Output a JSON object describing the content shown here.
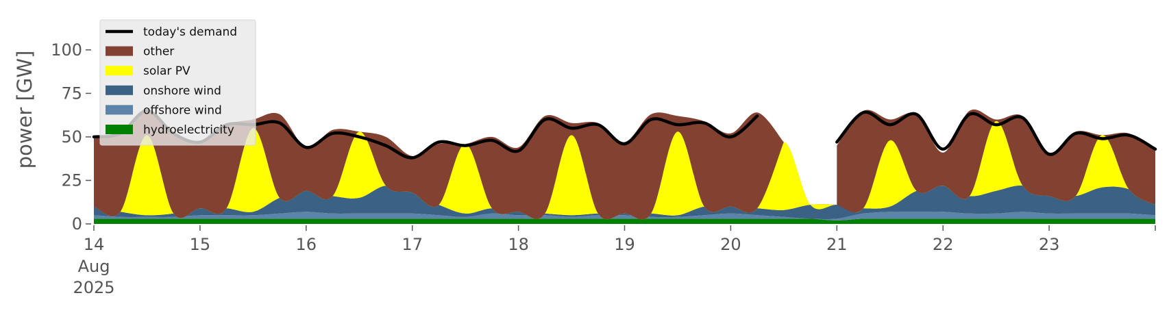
{
  "chart_data": {
    "type": "area",
    "title": "",
    "xlabel": "",
    "ylabel": "power [GW]",
    "ylim": [
      0,
      120
    ],
    "xlim": [
      "2025-08-14 00:00",
      "2025-08-24 00:00"
    ],
    "yticks": [
      0,
      25,
      50,
      75,
      100
    ],
    "xticks": [
      {
        "label": "14",
        "sub": [
          "Aug",
          "2025"
        ]
      },
      {
        "label": "15"
      },
      {
        "label": "16"
      },
      {
        "label": "17"
      },
      {
        "label": "18"
      },
      {
        "label": "19"
      },
      {
        "label": "20"
      },
      {
        "label": "21"
      },
      {
        "label": "22"
      },
      {
        "label": "23"
      }
    ],
    "x": [
      "2025-08-14 00:00",
      "2025-08-14 06:00",
      "2025-08-14 12:00",
      "2025-08-14 18:00",
      "2025-08-15 00:00",
      "2025-08-15 06:00",
      "2025-08-15 12:00",
      "2025-08-15 18:00",
      "2025-08-16 00:00",
      "2025-08-16 06:00",
      "2025-08-16 12:00",
      "2025-08-16 18:00",
      "2025-08-17 00:00",
      "2025-08-17 06:00",
      "2025-08-17 12:00",
      "2025-08-17 18:00",
      "2025-08-18 00:00",
      "2025-08-18 06:00",
      "2025-08-18 12:00",
      "2025-08-18 18:00",
      "2025-08-19 00:00",
      "2025-08-19 06:00",
      "2025-08-19 12:00",
      "2025-08-19 18:00",
      "2025-08-20 00:00",
      "2025-08-20 06:00",
      "2025-08-20 12:00",
      "2025-08-20 18:00",
      "2025-08-21 00:00",
      "2025-08-21 06:00",
      "2025-08-21 12:00",
      "2025-08-21 18:00",
      "2025-08-22 00:00",
      "2025-08-22 06:00",
      "2025-08-22 12:00",
      "2025-08-22 18:00",
      "2025-08-23 00:00",
      "2025-08-23 06:00",
      "2025-08-23 12:00",
      "2025-08-23 18:00",
      "2025-08-24 00:00"
    ],
    "series": [
      {
        "name": "hydroelectricity",
        "color": "#008000",
        "values": [
          3,
          3,
          3,
          3,
          3,
          3,
          3,
          3,
          3,
          3,
          3,
          3,
          3,
          3,
          3,
          3,
          3,
          3,
          3,
          3,
          3,
          3,
          3,
          3,
          3,
          3,
          3,
          3,
          2,
          3,
          3,
          3,
          3,
          3,
          3,
          3,
          3,
          3,
          3,
          3,
          3
        ]
      },
      {
        "name": "offshore wind",
        "color": "#5b84a8",
        "values": [
          2,
          1,
          1,
          1,
          2,
          2,
          2,
          3,
          4,
          3,
          3,
          3,
          3,
          2,
          1,
          3,
          2,
          2,
          1,
          2,
          2,
          1,
          1,
          2,
          3,
          2,
          1,
          0,
          1,
          3,
          4,
          4,
          4,
          3,
          3,
          4,
          3,
          3,
          3,
          3,
          2
        ]
      },
      {
        "name": "onshore wind",
        "color": "#3b6184",
        "values": [
          5,
          3,
          1,
          2,
          4,
          4,
          2,
          9,
          12,
          10,
          9,
          16,
          12,
          6,
          2,
          3,
          2,
          1,
          1,
          1,
          1,
          2,
          1,
          5,
          4,
          4,
          4,
          8,
          8,
          3,
          3,
          12,
          15,
          10,
          13,
          15,
          10,
          10,
          15,
          14,
          6
        ]
      },
      {
        "name": "solar PV",
        "color": "#ffff00",
        "values": [
          0,
          0,
          46,
          0,
          0,
          0,
          48,
          0,
          0,
          0,
          38,
          0,
          0,
          0,
          40,
          0,
          0,
          0,
          46,
          0,
          0,
          0,
          48,
          0,
          0,
          0,
          39,
          0,
          0,
          0,
          38,
          0,
          0,
          0,
          40,
          0,
          0,
          0,
          30,
          0,
          0
        ]
      },
      {
        "name": "other",
        "color": "#824131",
        "values": [
          40,
          45,
          15,
          46,
          38,
          48,
          5,
          48,
          25,
          38,
          0,
          28,
          21,
          35,
          0,
          41,
          37,
          56,
          7,
          52,
          41,
          57,
          9,
          49,
          42,
          55,
          0,
          null,
          34,
          56,
          12,
          44,
          19,
          49,
          1,
          40,
          25,
          37,
          0,
          32,
          32
        ]
      }
    ],
    "demand": {
      "name": "today's demand",
      "color": "#000000",
      "values": [
        50,
        52,
        65,
        52,
        47,
        57,
        57,
        58,
        44,
        52,
        50,
        45,
        38,
        47,
        45,
        48,
        42,
        60,
        55,
        57,
        46,
        60,
        57,
        58,
        50,
        62,
        null,
        null,
        47,
        64,
        57,
        63,
        43,
        63,
        57,
        61,
        40,
        52,
        49,
        51,
        43
      ]
    },
    "legend": {
      "position": "top-left",
      "entries": [
        "today's demand",
        "other",
        "solar PV",
        "onshore wind",
        "offshore wind",
        "hydroelectricity"
      ]
    },
    "grid": false
  }
}
